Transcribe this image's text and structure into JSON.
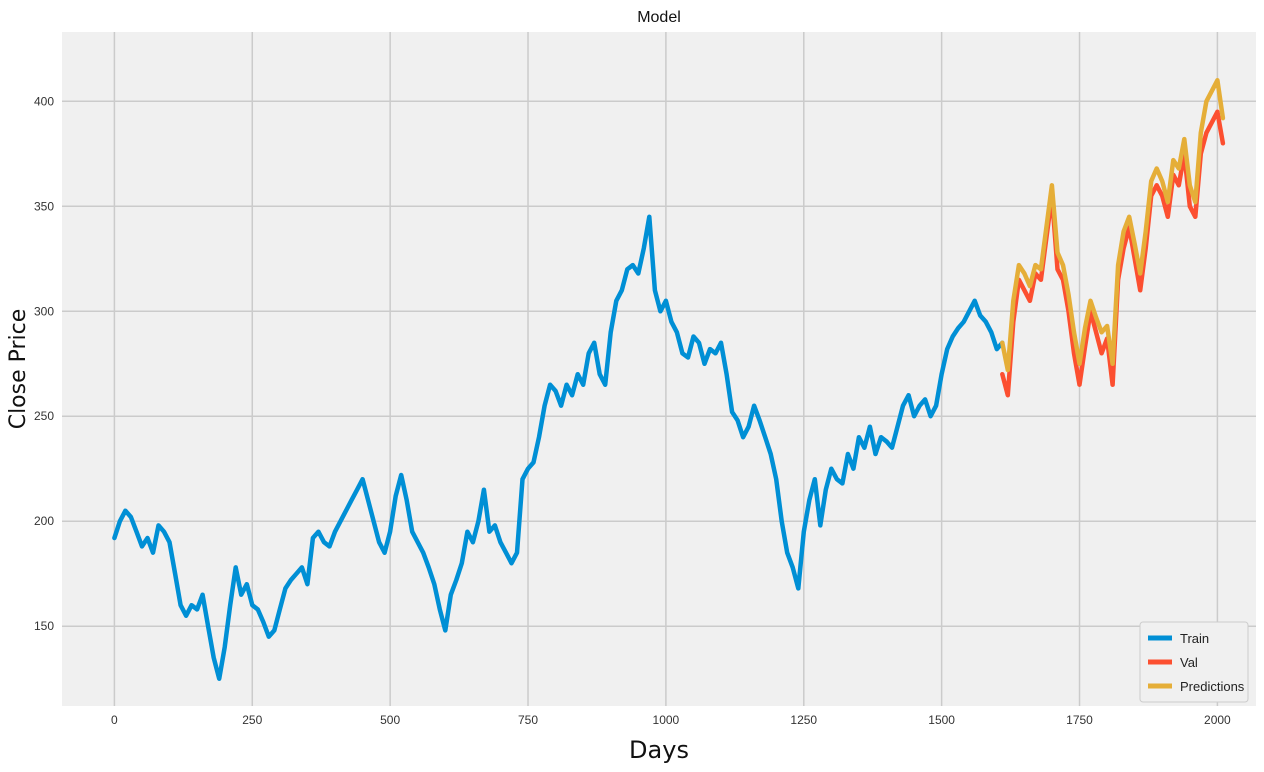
{
  "chart_data": {
    "type": "line",
    "title": "Model",
    "xlabel": "Days",
    "ylabel": "Close Price",
    "xlim": [
      -95,
      2070
    ],
    "ylim": [
      112,
      433
    ],
    "x_ticks": [
      0,
      250,
      500,
      750,
      1000,
      1250,
      1500,
      1750,
      2000
    ],
    "y_ticks": [
      150,
      200,
      250,
      300,
      350,
      400
    ],
    "grid": true,
    "legend_position": "bottom-right",
    "colors": {
      "background": "#f0f0f0",
      "grid": "#cbcbcb",
      "train": "#008fd5",
      "val": "#fc4f30",
      "predictions": "#e5ae38"
    },
    "series": [
      {
        "name": "Train",
        "color": "#008fd5",
        "x": [
          0,
          10,
          20,
          30,
          40,
          50,
          60,
          70,
          80,
          90,
          100,
          110,
          120,
          130,
          140,
          150,
          160,
          170,
          180,
          190,
          200,
          210,
          220,
          230,
          240,
          250,
          260,
          270,
          280,
          290,
          300,
          310,
          320,
          330,
          340,
          350,
          360,
          370,
          380,
          390,
          400,
          410,
          420,
          430,
          440,
          450,
          460,
          470,
          480,
          490,
          500,
          510,
          520,
          530,
          540,
          550,
          560,
          570,
          580,
          590,
          600,
          610,
          620,
          630,
          640,
          650,
          660,
          670,
          680,
          690,
          700,
          710,
          720,
          730,
          740,
          750,
          760,
          770,
          780,
          790,
          800,
          810,
          820,
          830,
          840,
          850,
          860,
          870,
          880,
          890,
          900,
          910,
          920,
          930,
          940,
          950,
          960,
          970,
          980,
          990,
          1000,
          1010,
          1020,
          1030,
          1040,
          1050,
          1060,
          1070,
          1080,
          1090,
          1100,
          1110,
          1120,
          1130,
          1140,
          1150,
          1160,
          1170,
          1180,
          1190,
          1200,
          1210,
          1220,
          1230,
          1240,
          1250,
          1260,
          1270,
          1280,
          1290,
          1300,
          1310,
          1320,
          1330,
          1340,
          1350,
          1360,
          1370,
          1380,
          1390,
          1400,
          1410,
          1420,
          1430,
          1440,
          1450,
          1460,
          1470,
          1480,
          1490,
          1500,
          1510,
          1520,
          1530,
          1540,
          1550,
          1560,
          1570,
          1580,
          1590,
          1600,
          1610
        ],
        "y": [
          192,
          200,
          205,
          202,
          195,
          188,
          192,
          185,
          198,
          195,
          190,
          175,
          160,
          155,
          160,
          158,
          165,
          150,
          135,
          125,
          140,
          160,
          178,
          165,
          170,
          160,
          158,
          152,
          145,
          148,
          158,
          168,
          172,
          175,
          178,
          170,
          192,
          195,
          190,
          188,
          195,
          200,
          205,
          210,
          215,
          220,
          210,
          200,
          190,
          185,
          195,
          212,
          222,
          210,
          195,
          190,
          185,
          178,
          170,
          158,
          148,
          165,
          172,
          180,
          195,
          190,
          200,
          215,
          195,
          198,
          190,
          185,
          180,
          185,
          220,
          225,
          228,
          240,
          255,
          265,
          262,
          255,
          265,
          260,
          270,
          265,
          280,
          285,
          270,
          265,
          290,
          305,
          310,
          320,
          322,
          318,
          330,
          345,
          310,
          300,
          305,
          295,
          290,
          280,
          278,
          288,
          285,
          275,
          282,
          280,
          285,
          270,
          252,
          248,
          240,
          245,
          255,
          248,
          240,
          232,
          220,
          200,
          185,
          178,
          168,
          195,
          210,
          220,
          198,
          215,
          225,
          220,
          218,
          232,
          225,
          240,
          235,
          245,
          232,
          240,
          238,
          235,
          245,
          255,
          260,
          250,
          255,
          258,
          250,
          255,
          270,
          282,
          288,
          292,
          295,
          300,
          305,
          298,
          295,
          290,
          282,
          285
        ]
      },
      {
        "name": "Val",
        "color": "#fc4f30",
        "x": [
          1610,
          1620,
          1630,
          1640,
          1650,
          1660,
          1670,
          1680,
          1690,
          1700,
          1710,
          1720,
          1730,
          1740,
          1750,
          1760,
          1770,
          1780,
          1790,
          1800,
          1810,
          1820,
          1830,
          1840,
          1850,
          1860,
          1870,
          1880,
          1890,
          1900,
          1910,
          1920,
          1930,
          1940,
          1950,
          1960,
          1970,
          1980,
          1990,
          2000,
          2010
        ],
        "y": [
          270,
          260,
          295,
          315,
          310,
          305,
          318,
          315,
          335,
          355,
          320,
          315,
          300,
          280,
          265,
          283,
          300,
          290,
          280,
          287,
          265,
          315,
          330,
          340,
          325,
          310,
          330,
          355,
          360,
          355,
          345,
          365,
          360,
          375,
          350,
          345,
          375,
          385,
          390,
          395,
          380
        ]
      },
      {
        "name": "Predictions",
        "color": "#e5ae38",
        "x": [
          1610,
          1620,
          1630,
          1640,
          1650,
          1660,
          1670,
          1680,
          1690,
          1700,
          1710,
          1720,
          1730,
          1740,
          1750,
          1760,
          1770,
          1780,
          1790,
          1800,
          1810,
          1820,
          1830,
          1840,
          1850,
          1860,
          1870,
          1880,
          1890,
          1900,
          1910,
          1920,
          1930,
          1940,
          1950,
          1960,
          1970,
          1980,
          1990,
          2000,
          2010
        ],
        "y": [
          285,
          272,
          305,
          322,
          318,
          312,
          322,
          320,
          340,
          360,
          328,
          322,
          308,
          290,
          275,
          292,
          305,
          297,
          290,
          293,
          275,
          322,
          338,
          345,
          332,
          318,
          338,
          362,
          368,
          362,
          352,
          372,
          368,
          382,
          360,
          352,
          385,
          400,
          405,
          410,
          392
        ]
      }
    ]
  }
}
